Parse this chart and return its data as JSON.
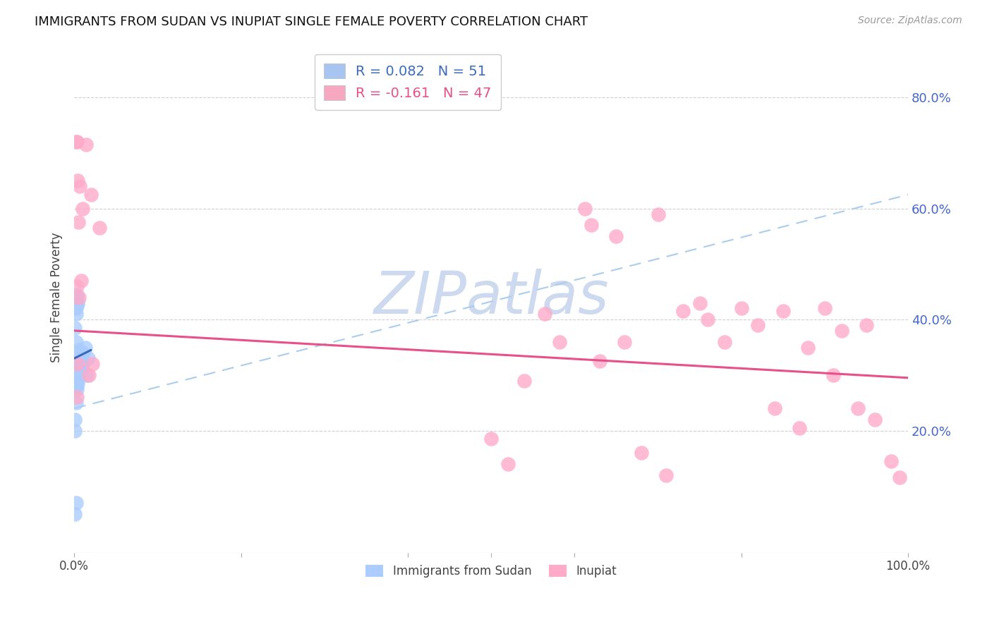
{
  "title": "IMMIGRANTS FROM SUDAN VS INUPIAT SINGLE FEMALE POVERTY CORRELATION CHART",
  "source": "Source: ZipAtlas.com",
  "ylabel": "Single Female Poverty",
  "ytick_labels": [
    "20.0%",
    "40.0%",
    "60.0%",
    "80.0%"
  ],
  "ytick_values": [
    0.2,
    0.4,
    0.6,
    0.8
  ],
  "xlim": [
    0.0,
    1.0
  ],
  "ylim": [
    -0.02,
    0.9
  ],
  "legend_entry1": "R = 0.082   N = 51",
  "legend_entry2": "R = -0.161   N = 47",
  "legend_color1": "#a8c4f0",
  "legend_color2": "#f5a8c0",
  "line1_color": "#3a6abf",
  "line2_color": "#e8508a",
  "scatter1_color": "#aaccff",
  "scatter2_color": "#ffaac8",
  "watermark": "ZIPatlas",
  "watermark_color": "#ccd9ee",
  "background_color": "#ffffff",
  "sudan_x": [
    0.001,
    0.001,
    0.002,
    0.002,
    0.002,
    0.002,
    0.002,
    0.003,
    0.003,
    0.003,
    0.003,
    0.003,
    0.004,
    0.004,
    0.004,
    0.004,
    0.005,
    0.005,
    0.005,
    0.005,
    0.006,
    0.006,
    0.007,
    0.007,
    0.008,
    0.008,
    0.009,
    0.009,
    0.01,
    0.01,
    0.001,
    0.001,
    0.002,
    0.002,
    0.003,
    0.003,
    0.004,
    0.005,
    0.005,
    0.001,
    0.001,
    0.002,
    0.015,
    0.017,
    0.013,
    0.001,
    0.002,
    0.002,
    0.003,
    0.001,
    0.002
  ],
  "sudan_y": [
    0.335,
    0.305,
    0.34,
    0.32,
    0.31,
    0.295,
    0.28,
    0.34,
    0.32,
    0.305,
    0.29,
    0.275,
    0.335,
    0.315,
    0.3,
    0.285,
    0.34,
    0.325,
    0.31,
    0.295,
    0.345,
    0.33,
    0.34,
    0.325,
    0.34,
    0.32,
    0.335,
    0.315,
    0.34,
    0.32,
    0.44,
    0.42,
    0.43,
    0.41,
    0.445,
    0.425,
    0.43,
    0.3,
    0.32,
    0.2,
    0.22,
    0.25,
    0.3,
    0.33,
    0.35,
    0.05,
    0.07,
    0.42,
    0.44,
    0.385,
    0.36
  ],
  "inupiat_x": [
    0.003,
    0.004,
    0.01,
    0.014,
    0.002,
    0.005,
    0.007,
    0.003,
    0.006,
    0.02,
    0.018,
    0.004,
    0.003,
    0.03,
    0.022,
    0.008,
    0.5,
    0.62,
    0.65,
    0.7,
    0.75,
    0.8,
    0.82,
    0.85,
    0.88,
    0.9,
    0.92,
    0.95,
    0.96,
    0.98,
    0.99,
    0.94,
    0.91,
    0.87,
    0.84,
    0.78,
    0.76,
    0.73,
    0.71,
    0.68,
    0.66,
    0.63,
    0.612,
    0.582,
    0.564,
    0.54,
    0.52
  ],
  "inupiat_y": [
    0.72,
    0.65,
    0.6,
    0.715,
    0.72,
    0.575,
    0.64,
    0.46,
    0.44,
    0.625,
    0.3,
    0.32,
    0.26,
    0.565,
    0.32,
    0.47,
    0.185,
    0.57,
    0.55,
    0.59,
    0.43,
    0.42,
    0.39,
    0.415,
    0.35,
    0.42,
    0.38,
    0.39,
    0.22,
    0.145,
    0.115,
    0.24,
    0.3,
    0.205,
    0.24,
    0.36,
    0.4,
    0.415,
    0.12,
    0.16,
    0.36,
    0.325,
    0.6,
    0.36,
    0.41,
    0.29,
    0.14
  ],
  "sudan_line_x": [
    0.0,
    0.02
  ],
  "sudan_line_y": [
    0.33,
    0.345
  ],
  "inupiat_line_x": [
    0.0,
    1.0
  ],
  "inupiat_line_y": [
    0.38,
    0.295
  ],
  "dashed_line_x": [
    0.0,
    1.0
  ],
  "dashed_line_y": [
    0.24,
    0.625
  ]
}
